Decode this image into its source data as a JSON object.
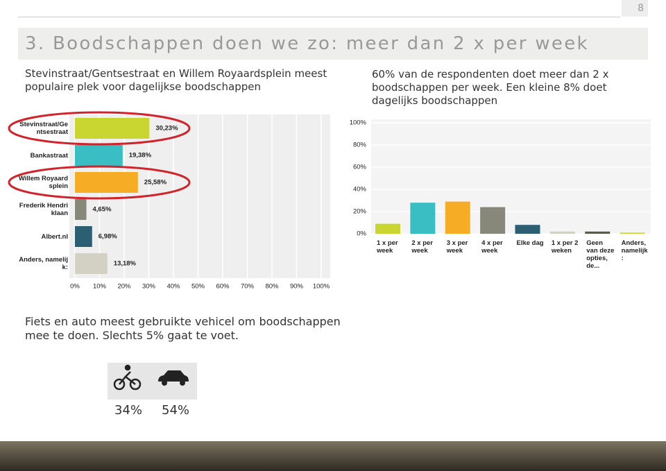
{
  "page_number": "8",
  "title": "3. Boodschappen doen we zo: meer dan 2 x per week",
  "left_text": "Stevinstraat/Gentsestraat en Willem Royaardsplein meest populaire plek voor dagelijkse boodschappen",
  "right_text": "60% van de respondenten doet meer dan 2 x boodschappen per week. Een kleine 8%  doet dagelijks boodschappen",
  "bottom_text": "Fiets en auto meest gebruikte vehicel om boodschappen mee te doen. Slechts 5% gaat te voet.",
  "transport": [
    {
      "label": "34%"
    },
    {
      "label": "54%"
    }
  ],
  "chart_data": [
    {
      "type": "hbar",
      "categories": [
        "Stevinstraat/Gentsestraat",
        "Bankastraat",
        "Willem Royaardsplein",
        "Frederik Hendriklaan",
        "Albert.nl",
        "Anders, namelijk:"
      ],
      "values": [
        30.23,
        19.38,
        25.58,
        4.65,
        6.98,
        13.18
      ],
      "value_labels": [
        "30,23%",
        "19,38%",
        "25,58%",
        "4,65%",
        "6,98%",
        "13,18%"
      ],
      "colors": [
        "#c9d530",
        "#38bec3",
        "#f6ad25",
        "#88887a",
        "#2c5f72",
        "#d3d1c3"
      ],
      "xlim": [
        0,
        100
      ],
      "xticks": [
        {
          "value": 0,
          "label": "0%"
        },
        {
          "value": 10,
          "label": "10%"
        },
        {
          "value": 20,
          "label": "20%"
        },
        {
          "value": 30,
          "label": "30%"
        },
        {
          "value": 40,
          "label": "40%"
        },
        {
          "value": 50,
          "label": "50%"
        },
        {
          "value": 60,
          "label": "60%"
        },
        {
          "value": 70,
          "label": "70%"
        },
        {
          "value": 80,
          "label": "80%"
        },
        {
          "value": 90,
          "label": "90%"
        },
        {
          "value": 100,
          "label": "100%"
        }
      ],
      "grid": true
    },
    {
      "type": "bar",
      "categories": [
        "1 x per week",
        "2 x per week",
        "3 x per week",
        "4 x per week",
        "Elke dag",
        "1 x per 2 weken",
        "Geen van deze opties, de...",
        "Anders, namelijk :"
      ],
      "values": [
        9,
        28,
        29,
        24,
        8,
        2,
        2,
        1
      ],
      "colors": [
        "#c9d530",
        "#38bec3",
        "#f6ad25",
        "#88887a",
        "#2c5f72",
        "#d3d1c3",
        "#5a5a4c",
        "#c9d530"
      ],
      "ylim": [
        0,
        100
      ],
      "yticks": [
        {
          "value": 0,
          "label": "0%"
        },
        {
          "value": 20,
          "label": "20%"
        },
        {
          "value": 40,
          "label": "40%"
        },
        {
          "value": 60,
          "label": "60%"
        },
        {
          "value": 80,
          "label": "80%"
        },
        {
          "value": 100,
          "label": "100%"
        }
      ],
      "grid": true
    }
  ]
}
